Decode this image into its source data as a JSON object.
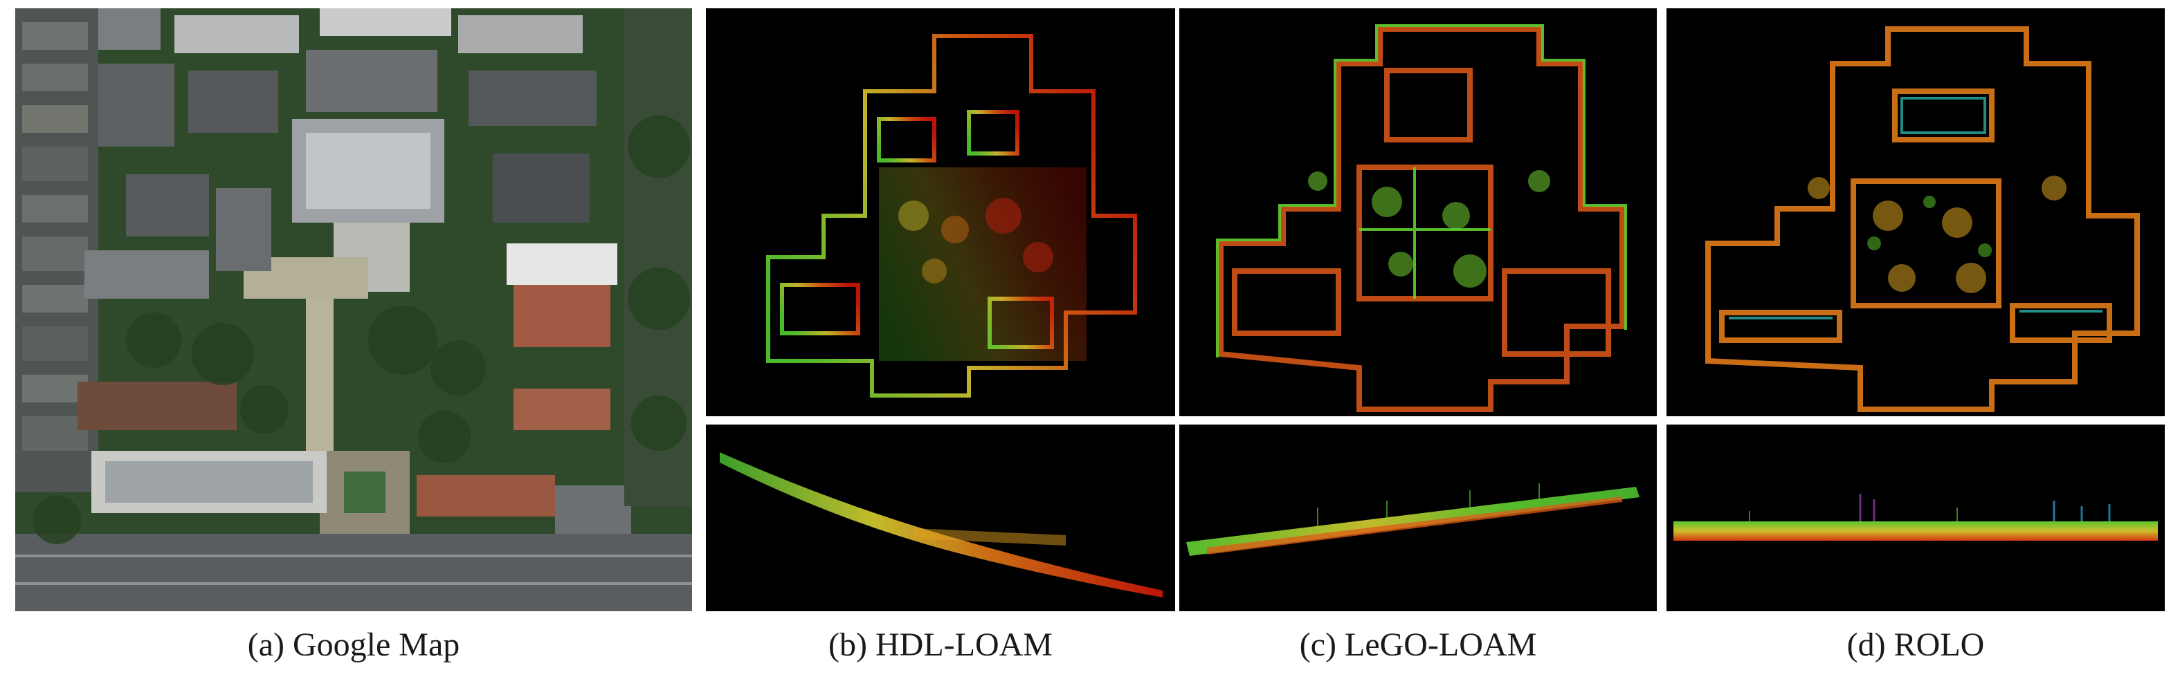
{
  "captions": {
    "a": "(a) Google Map",
    "b": "(b) HDL-LOAM",
    "c": "(c) LeGO-LOAM",
    "d": "(d) ROLO"
  },
  "colors": {
    "map_background": "#000000",
    "point_red": "#e02a10",
    "point_orange": "#e07a18",
    "point_yellow": "#d8c830",
    "point_green": "#60d030",
    "satellite_vegetation": "#2f4a2a",
    "satellite_roof": "#8a8c8e"
  }
}
